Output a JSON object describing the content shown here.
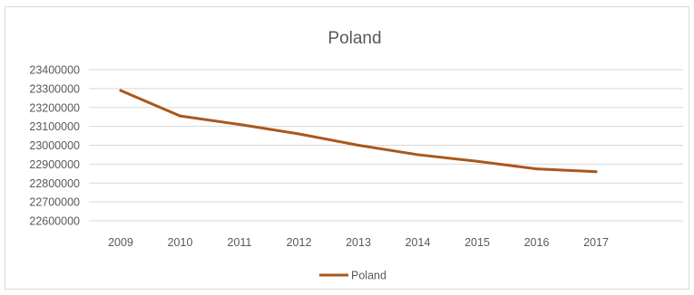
{
  "colors": {
    "series": "#a9581c",
    "grid": "#d9d9d9",
    "text": "#595959"
  },
  "chart_data": {
    "type": "line",
    "title": "Poland",
    "xlabel": "",
    "ylabel": "",
    "grid": true,
    "legend": "bottom",
    "categories": [
      "2009",
      "2010",
      "2011",
      "2012",
      "2013",
      "2014",
      "2015",
      "2016",
      "2017"
    ],
    "ylim": [
      22600000,
      23400000
    ],
    "yticks": [
      "23400000",
      "23300000",
      "23200000",
      "23100000",
      "23000000",
      "22900000",
      "22800000",
      "22700000",
      "22600000"
    ],
    "series": [
      {
        "name": "Poland",
        "values": [
          23290000,
          23155000,
          23110000,
          23060000,
          23000000,
          22950000,
          22915000,
          22875000,
          22860000
        ]
      }
    ]
  }
}
